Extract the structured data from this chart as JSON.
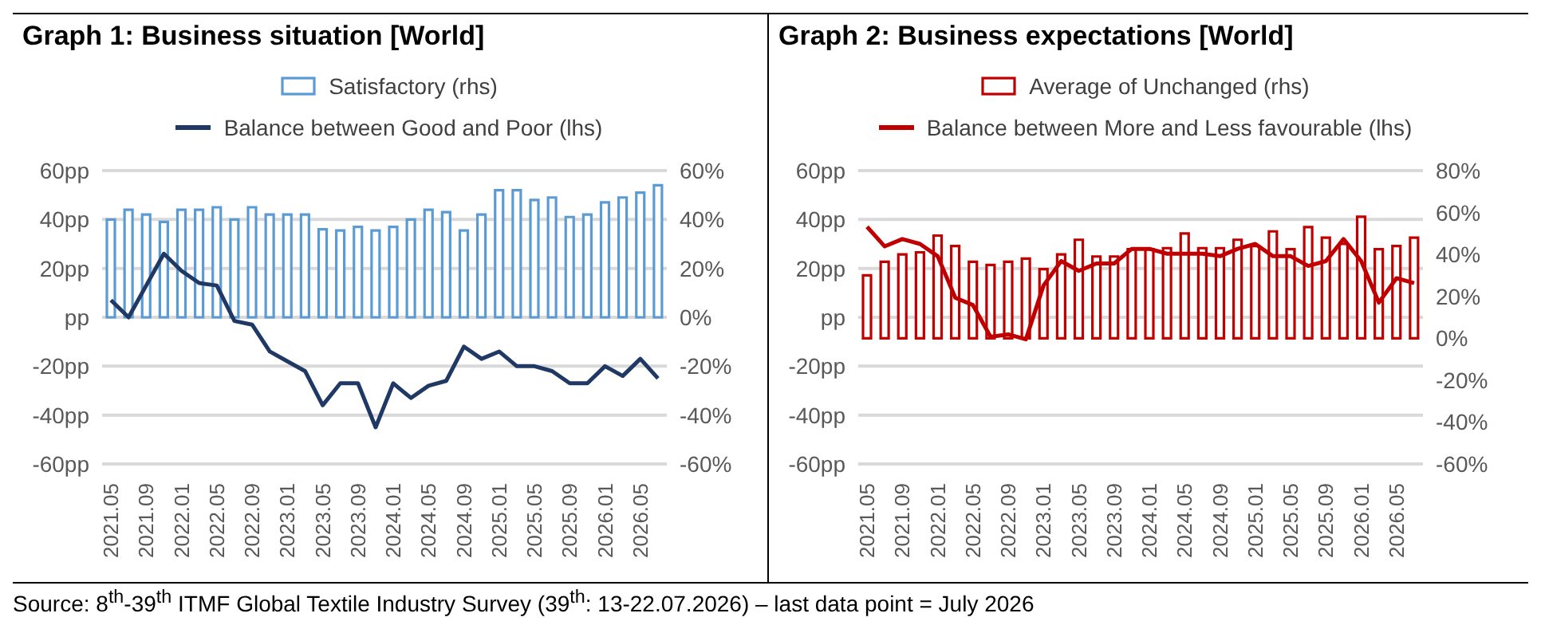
{
  "chart_data": [
    {
      "type": "bar",
      "title": "Graph 1: Business situation [World]",
      "categories": [
        "2021.05",
        null,
        "2021.09",
        null,
        "2022.01",
        null,
        "2022.05",
        null,
        "2022.09",
        null,
        "2023.01",
        null,
        "2023.05",
        null,
        "2023.09",
        null,
        "2024.01",
        null,
        "2024.05",
        null,
        "2024.09",
        null,
        "2025.01",
        null,
        "2025.05",
        null,
        "2025.09",
        null,
        "2026.01",
        null,
        "2026.05",
        null
      ],
      "series": [
        {
          "name": "Satisfactory (rhs)",
          "axis": "y2",
          "color": "#5b9bd5",
          "values": [
            40,
            44,
            42,
            39,
            44,
            44,
            45,
            40,
            45,
            42,
            42,
            42,
            36,
            35.5,
            37,
            35.5,
            37,
            40,
            44,
            43,
            35.5,
            42,
            52,
            52,
            48,
            49,
            41,
            42,
            47,
            49,
            51,
            54
          ]
        },
        {
          "name": "Balance between Good and Poor (lhs)",
          "type": "line",
          "color": "#1f3864",
          "values": [
            7,
            0,
            13,
            26,
            19,
            14,
            13,
            -1.5,
            -3,
            -14,
            -18,
            -22,
            -36,
            -27,
            -27,
            -45,
            -27,
            -33,
            -28,
            -26,
            -12,
            -17,
            -14,
            -20,
            -20,
            -22,
            -27,
            -27,
            -20,
            -24,
            -17,
            -25
          ]
        }
      ],
      "ylim": [
        -60,
        60
      ],
      "yticks": [
        {
          "value": -60,
          "label": "-60pp"
        },
        {
          "value": -40,
          "label": "-40pp"
        },
        {
          "value": -20,
          "label": "-20pp"
        },
        {
          "value": 0,
          "label": "pp"
        },
        {
          "value": 20,
          "label": "20pp"
        },
        {
          "value": 40,
          "label": "40pp"
        },
        {
          "value": 60,
          "label": "60pp"
        }
      ],
      "y2lim": [
        -60,
        60
      ],
      "y2ticks": [
        {
          "value": -60,
          "label": "-60%"
        },
        {
          "value": -40,
          "label": "-40%"
        },
        {
          "value": -20,
          "label": "-20%"
        },
        {
          "value": 0,
          "label": "0%"
        },
        {
          "value": 20,
          "label": "20%"
        },
        {
          "value": 40,
          "label": "40%"
        },
        {
          "value": 60,
          "label": "60%"
        }
      ],
      "grid": "y",
      "legend": "top",
      "annotations": [
        "Source: 8$^{th}$-39$^{th}$ ITMF Global Textile Industry Survey (39$^{th}$: 13-22.07.2026) – last data point = July 2026"
      ]
    },
    {
      "type": "bar",
      "title": "Graph 2: Business expectations [World]",
      "categories": [
        "2021.05",
        null,
        "2021.09",
        null,
        "2022.01",
        null,
        "2022.05",
        null,
        "2022.09",
        null,
        "2023.01",
        null,
        "2023.05",
        null,
        "2023.09",
        null,
        "2024.01",
        null,
        "2024.05",
        null,
        "2024.09",
        null,
        "2025.01",
        null,
        "2025.05",
        null,
        "2025.09",
        null,
        "2026.01",
        null,
        "2026.05",
        null
      ],
      "series": [
        {
          "name": "Average of Unchanged (rhs)",
          "axis": "y2",
          "color": "#c00000",
          "values": [
            30,
            36.5,
            40,
            41,
            49,
            44,
            36.5,
            35,
            36.5,
            38,
            33,
            40,
            47,
            39,
            39,
            42.5,
            42.5,
            43,
            50,
            43,
            43,
            47,
            44,
            51,
            42.5,
            53,
            48,
            45,
            58,
            42.5,
            44,
            48
          ]
        },
        {
          "name": "Balance between More and Less favourable (lhs)",
          "type": "line",
          "color": "#c00000",
          "values": [
            37,
            29,
            32,
            30,
            25,
            8,
            5,
            -8,
            -7,
            -9,
            13,
            23,
            19,
            22,
            22,
            28,
            28,
            26,
            26,
            26,
            25,
            28,
            30,
            25,
            25,
            21,
            23,
            32,
            23,
            6,
            16,
            14
          ]
        }
      ],
      "ylim": [
        -60,
        60
      ],
      "yticks": [
        {
          "value": -60,
          "label": "-60pp"
        },
        {
          "value": -40,
          "label": "-40pp"
        },
        {
          "value": -20,
          "label": "-20pp"
        },
        {
          "value": 0,
          "label": "pp"
        },
        {
          "value": 20,
          "label": "20pp"
        },
        {
          "value": 40,
          "label": "40pp"
        },
        {
          "value": 60,
          "label": "60pp"
        }
      ],
      "y2lim": [
        -60,
        80
      ],
      "y2ticks": [
        {
          "value": -60,
          "label": "-60%"
        },
        {
          "value": -40,
          "label": "-40%"
        },
        {
          "value": -20,
          "label": "-20%"
        },
        {
          "value": 0,
          "label": "0%"
        },
        {
          "value": 20,
          "label": "20%"
        },
        {
          "value": 40,
          "label": "40%"
        },
        {
          "value": 60,
          "label": "60%"
        },
        {
          "value": 80,
          "label": "80%"
        }
      ],
      "grid": "y",
      "legend": "top"
    }
  ]
}
